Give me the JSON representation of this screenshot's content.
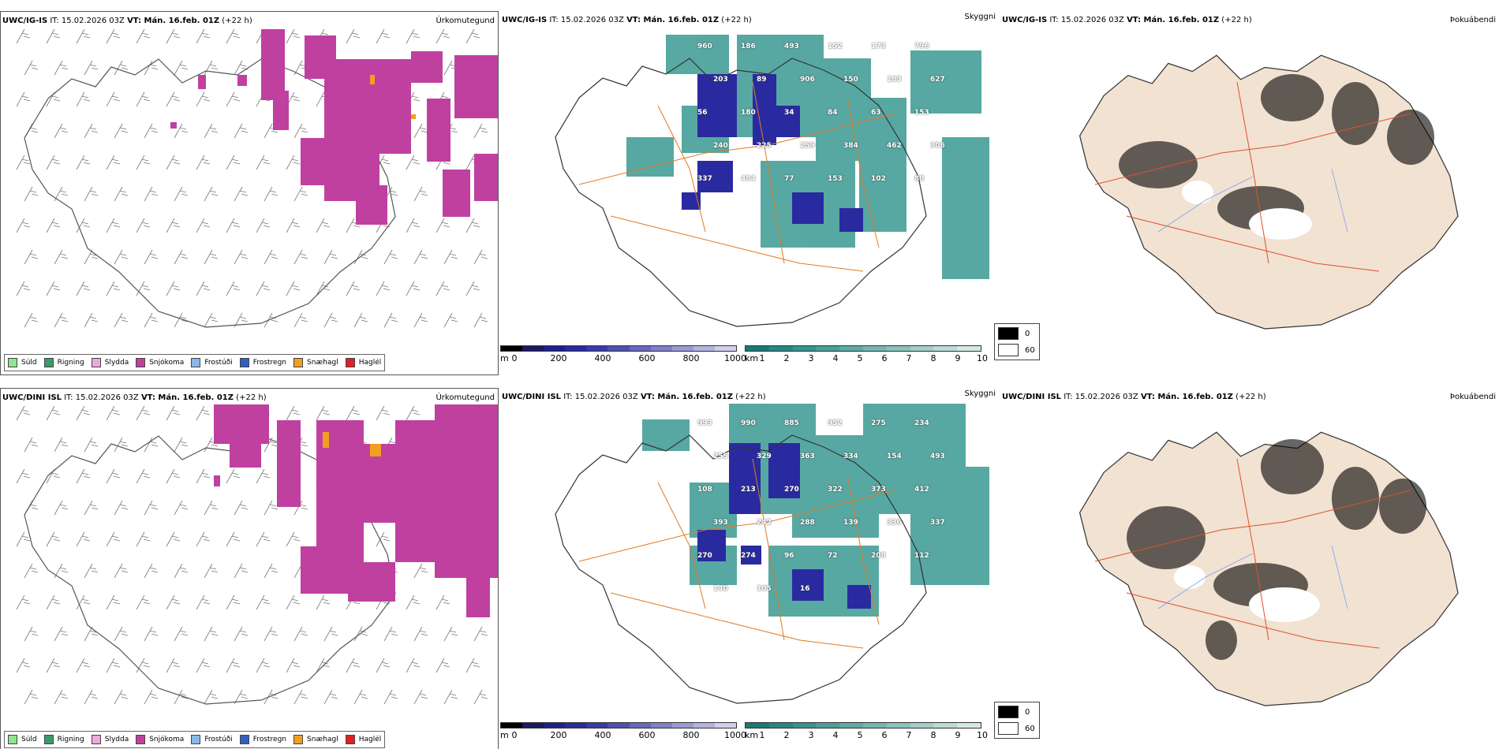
{
  "rows": [
    {
      "model": "UWC/IG-IS",
      "it_label": "IT: 15.02.2026 03Z",
      "vt_label": "VT: Mán. 16.feb. 01Z",
      "lead": "(+22 h)",
      "precip_title": "Úrkomutegund",
      "cloud_title": "Skyggni",
      "fog_title": "Þokuábendi",
      "cloud_labels": [
        "960",
        "186",
        "493",
        "152",
        "173",
        "796",
        "203",
        "89",
        "906",
        "150",
        "183",
        "627",
        "56",
        "180",
        "34",
        "84",
        "63",
        "153",
        "240",
        "225",
        "259",
        "384",
        "462",
        "306",
        "337",
        "484",
        "77",
        "153",
        "102",
        "88"
      ]
    },
    {
      "model": "UWC/DINI ISL",
      "it_label": "IT: 15.02.2026 03Z",
      "vt_label": "VT: Mán. 16.feb. 01Z",
      "lead": "(+22 h)",
      "precip_title": "Úrkomutegund",
      "cloud_title": "Skyggni",
      "fog_title": "Þokuábendi",
      "cloud_labels": [
        "993",
        "990",
        "885",
        "952",
        "275",
        "234",
        "255",
        "329",
        "363",
        "334",
        "154",
        "493",
        "108",
        "213",
        "270",
        "322",
        "373",
        "412",
        "393",
        "242",
        "288",
        "139",
        "336",
        "337",
        "270",
        "274",
        "96",
        "72",
        "208",
        "112",
        "140",
        "105",
        "16"
      ]
    }
  ],
  "precip_legend": [
    {
      "label": "Súld",
      "color": "#8ee68e"
    },
    {
      "label": "Rigning",
      "color": "#3a9a6a"
    },
    {
      "label": "Slydda",
      "color": "#f0a8d8"
    },
    {
      "label": "Snjókoma",
      "color": "#c040a0"
    },
    {
      "label": "Frostúði",
      "color": "#8ab8e8"
    },
    {
      "label": "Frostregn",
      "color": "#3060c0"
    },
    {
      "label": "Snæhagl",
      "color": "#f0a020"
    },
    {
      "label": "Haglél",
      "color": "#e02020"
    }
  ],
  "cloud_base_bar": {
    "unit": "m",
    "ticks": [
      "0",
      "200",
      "400",
      "600",
      "800",
      "1000"
    ],
    "colors": [
      "#000000",
      "#1a1a60",
      "#20208a",
      "#2a2aa0",
      "#3a3aa8",
      "#5050b0",
      "#6868bc",
      "#8080c8",
      "#9a9ad4",
      "#b4b4e0",
      "#d0d0ec"
    ]
  },
  "visibility_bar": {
    "unit": "km",
    "ticks": [
      "1",
      "2",
      "3",
      "4",
      "5",
      "6",
      "7",
      "8",
      "9",
      "10"
    ],
    "colors": [
      "#1a7a74",
      "#2a8680",
      "#3a928c",
      "#4c9e98",
      "#60aaa4",
      "#76b6b0",
      "#8cc2bc",
      "#a4cec8",
      "#bcdad6",
      "#d6e8e4"
    ]
  },
  "fog_legend": [
    {
      "label": "0",
      "color": "#000000"
    },
    {
      "label": "60",
      "color": "#ffffff"
    }
  ],
  "colors": {
    "snow": "#c040a0",
    "sleet_hail": "#f0a020",
    "cloud_teal": "#3a9a92",
    "cloud_blue": "#2a2aa0",
    "roads": "#e07a20",
    "land_fog": "#f2e2d2"
  }
}
